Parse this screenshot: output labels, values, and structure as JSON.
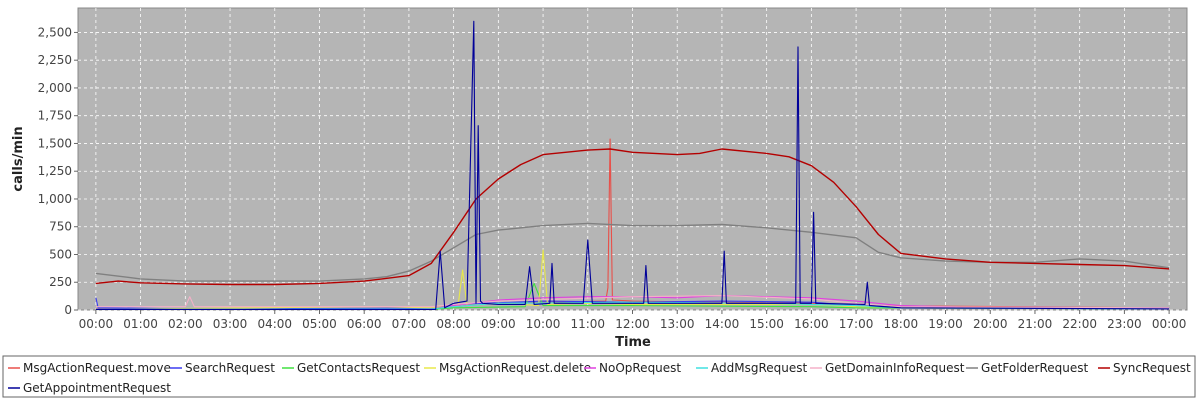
{
  "chart_data": {
    "type": "line",
    "title": "",
    "xlabel": "Time",
    "ylabel": "calls/min",
    "x_ticks": [
      "00:00",
      "01:00",
      "02:00",
      "03:00",
      "04:00",
      "05:00",
      "06:00",
      "07:00",
      "08:00",
      "09:00",
      "10:00",
      "11:00",
      "12:00",
      "13:00",
      "14:00",
      "15:00",
      "16:00",
      "17:00",
      "18:00",
      "19:00",
      "20:00",
      "21:00",
      "22:00",
      "23:00",
      "00:00"
    ],
    "y_ticks": [
      "0",
      "250",
      "500",
      "750",
      "1,000",
      "1,250",
      "1,500",
      "1,750",
      "2,000",
      "2,250",
      "2,500"
    ],
    "ylim": [
      0,
      2720
    ],
    "xlim_hours": [
      -0.4,
      24.4
    ],
    "grid": true,
    "background": "#b5b5b5",
    "legend_position": "bottom",
    "series": [
      {
        "name": "MsgActionRequest.move",
        "color": "#e8504a",
        "x": [
          0,
          7.5,
          8.0,
          9.0,
          11.4,
          11.45,
          11.5,
          11.55,
          12.0,
          16.0,
          17.0,
          24
        ],
        "y": [
          10,
          10,
          30,
          60,
          80,
          200,
          1540,
          90,
          80,
          60,
          40,
          20
        ]
      },
      {
        "name": "SearchRequest",
        "color": "#3c3cf0",
        "x": [
          0,
          0.05,
          0.2,
          2,
          6,
          7.5,
          8,
          10,
          12,
          14,
          16,
          17,
          18,
          20,
          24
        ],
        "y": [
          110,
          20,
          20,
          10,
          15,
          20,
          50,
          80,
          70,
          80,
          70,
          40,
          30,
          25,
          20
        ]
      },
      {
        "name": "GetContactsRequest",
        "color": "#40e040",
        "x": [
          0,
          7.5,
          8,
          9.6,
          9.8,
          10,
          12,
          16,
          17,
          24
        ],
        "y": [
          5,
          5,
          20,
          30,
          240,
          40,
          40,
          30,
          20,
          10
        ]
      },
      {
        "name": "MsgActionRequest.delete",
        "color": "#e8e84a",
        "x": [
          0,
          6.2,
          7.5,
          8.1,
          8.2,
          8.3,
          9,
          9.9,
          10.0,
          10.1,
          11,
          12,
          16,
          17,
          24
        ],
        "y": [
          5,
          30,
          20,
          40,
          360,
          40,
          60,
          40,
          540,
          50,
          60,
          50,
          50,
          30,
          10
        ]
      },
      {
        "name": "NoOpRequest",
        "color": "#e040e0",
        "x": [
          0,
          7.5,
          8,
          9,
          10,
          11,
          12,
          13,
          14,
          15,
          16,
          17,
          18,
          20,
          24
        ],
        "y": [
          5,
          10,
          40,
          90,
          110,
          120,
          120,
          110,
          130,
          120,
          110,
          80,
          40,
          20,
          10
        ]
      },
      {
        "name": "AddMsgRequest",
        "color": "#40e0e0",
        "x": [
          0,
          7.5,
          8,
          9,
          12,
          15,
          16,
          17,
          18,
          24
        ],
        "y": [
          5,
          10,
          30,
          60,
          70,
          60,
          50,
          40,
          20,
          10
        ]
      },
      {
        "name": "GetDomainInfoRequest",
        "color": "#f4b0c8",
        "x": [
          0,
          2.0,
          2.1,
          2.2,
          7.5,
          8,
          9,
          12,
          14,
          16,
          17,
          18,
          24
        ],
        "y": [
          30,
          30,
          120,
          30,
          30,
          50,
          80,
          120,
          130,
          100,
          60,
          30,
          20
        ]
      },
      {
        "name": "GetFolderRequest",
        "color": "#808080",
        "x": [
          0,
          1,
          2,
          3,
          4,
          5,
          6,
          6.5,
          7,
          7.5,
          8,
          8.5,
          9,
          10,
          11,
          12,
          13,
          14,
          15,
          16,
          17,
          17.5,
          18,
          19,
          20,
          21,
          22,
          23,
          24
        ],
        "y": [
          330,
          280,
          260,
          260,
          260,
          260,
          280,
          300,
          350,
          440,
          560,
          680,
          720,
          760,
          780,
          760,
          760,
          770,
          740,
          700,
          650,
          520,
          470,
          440,
          430,
          430,
          460,
          440,
          380
        ]
      },
      {
        "name": "SyncRequest",
        "color": "#b40000",
        "x": [
          0,
          0.5,
          1,
          2,
          3,
          4,
          5,
          6,
          7,
          7.5,
          8,
          8.5,
          9,
          9.5,
          10,
          10.5,
          11,
          11.5,
          12,
          13,
          13.5,
          14,
          15,
          15.5,
          16,
          16.5,
          17,
          17.5,
          18,
          19,
          20,
          21,
          22,
          23,
          24
        ],
        "y": [
          240,
          260,
          245,
          235,
          230,
          230,
          240,
          260,
          310,
          420,
          700,
          1000,
          1180,
          1310,
          1400,
          1420,
          1440,
          1450,
          1420,
          1400,
          1410,
          1450,
          1410,
          1380,
          1300,
          1150,
          930,
          680,
          510,
          460,
          430,
          420,
          410,
          400,
          370
        ]
      },
      {
        "name": "GetAppointmentRequest",
        "color": "#000099",
        "x": [
          0,
          7.6,
          7.7,
          7.8,
          8,
          8.3,
          8.45,
          8.5,
          8.55,
          8.6,
          8.65,
          9,
          9.6,
          9.7,
          9.8,
          10.15,
          10.2,
          10.25,
          10.9,
          11.0,
          11.1,
          12.25,
          12.3,
          12.35,
          14,
          14.05,
          14.1,
          15.65,
          15.7,
          15.75,
          16.0,
          16.05,
          16.1,
          17.2,
          17.25,
          17.3,
          18,
          24
        ],
        "y": [
          5,
          5,
          530,
          20,
          60,
          80,
          2600,
          60,
          1660,
          80,
          60,
          50,
          50,
          390,
          50,
          60,
          420,
          60,
          60,
          630,
          60,
          60,
          400,
          60,
          60,
          530,
          60,
          60,
          2370,
          60,
          60,
          880,
          60,
          50,
          250,
          40,
          20,
          10
        ]
      }
    ]
  },
  "legend": [
    "MsgActionRequest.move",
    "SearchRequest",
    "GetContactsRequest",
    "MsgActionRequest.delete",
    "NoOpRequest",
    "AddMsgRequest",
    "GetDomainInfoRequest",
    "GetFolderRequest",
    "SyncRequest",
    "GetAppointmentRequest"
  ]
}
